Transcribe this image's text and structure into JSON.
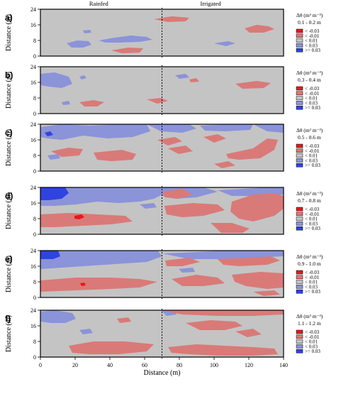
{
  "chart_data": {
    "type": "heatmap",
    "column_headers": [
      "Rainfed",
      "Irrigated"
    ],
    "xlabel": "Distance (m)",
    "ylabel": "Distance (m)",
    "x_ticks": [
      "0",
      "20",
      "40",
      "60",
      "80",
      "100",
      "120",
      "140"
    ],
    "y_ticks": [
      "0",
      "8",
      "16",
      "24"
    ],
    "xlim": [
      0,
      140
    ],
    "ylim": [
      0,
      24
    ],
    "divider_x": 70,
    "legend_title": "Δθ (m³ m⁻³)",
    "legend_entries": [
      {
        "label": "< -0.03",
        "color": "#e41a1c"
      },
      {
        "label": "< -0.01",
        "color": "#d97a78"
      },
      {
        "label": "< 0.01",
        "color": "#c4c4c4"
      },
      {
        "label": "< 0.03",
        "color": "#8b93d9"
      },
      {
        "label": ">= 0.03",
        "color": "#2f43e0"
      }
    ],
    "panels": [
      {
        "letter": "a)",
        "depth": "0.1 - 0.2 m"
      },
      {
        "letter": "b)",
        "depth": "0.3 - 0.4 m"
      },
      {
        "letter": "c)",
        "depth": "0.5 - 0.6 m"
      },
      {
        "letter": "d)",
        "depth": "0.7 - 0.8 m"
      },
      {
        "letter": "e)",
        "depth": "0.9 - 1.0 m"
      },
      {
        "letter": "f)",
        "depth": "1.1 - 1.2 m"
      }
    ]
  }
}
